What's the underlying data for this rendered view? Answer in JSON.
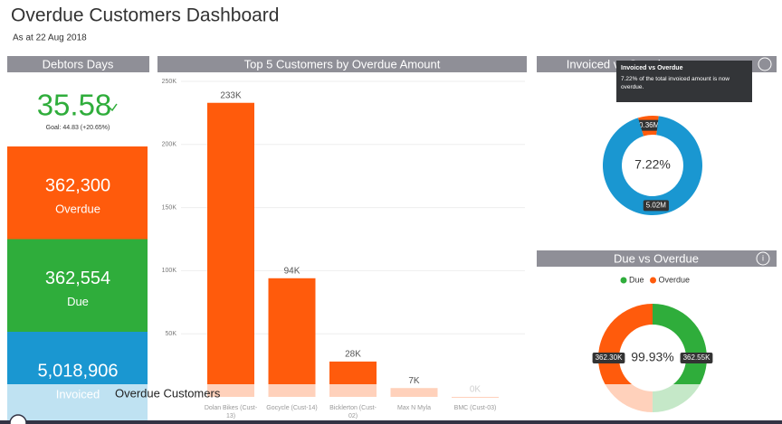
{
  "header": {
    "title": "Overdue Customers Dashboard",
    "subtitle": "As at 22 Aug 2018"
  },
  "debtors_days": {
    "title": "Debtors Days",
    "value": "35.58",
    "goal": "Goal: 44.83 (+20.65%)"
  },
  "cards": [
    {
      "value": "362,300",
      "label": "Overdue",
      "color": "#ff5b0c"
    },
    {
      "value": "362,554",
      "label": "Due",
      "color": "#2fad3b"
    },
    {
      "value": "5,018,906",
      "label": "Invoiced",
      "color": "#1a97d1"
    }
  ],
  "bar_chart": {
    "type": "bar",
    "title": "Top 5 Customers by Overdue Amount",
    "categories": [
      "Dolan Bikes (Cust-13)",
      "Gocycle (Cust-14)",
      "Bicklerton (Cust-02)",
      "Max N Myla",
      "BMC (Cust-03)"
    ],
    "values": [
      233000,
      94000,
      28000,
      7000,
      0
    ],
    "value_labels": [
      "233K",
      "94K",
      "28K",
      "7K",
      "0K"
    ],
    "color": "#ff5b0c",
    "ylim": [
      0,
      250000
    ],
    "yticks": [
      {
        "value": 50000,
        "label": "50K"
      },
      {
        "value": 100000,
        "label": "100K"
      },
      {
        "value": 150000,
        "label": "150K"
      },
      {
        "value": 200000,
        "label": "200K"
      },
      {
        "value": 250000,
        "label": "250K"
      }
    ],
    "grid": true
  },
  "invoiced_vs_overdue": {
    "type": "pie",
    "title": "Invoiced vs Overdue",
    "tooltip": {
      "title": "Invoiced vs Overdue",
      "text": "7.22% of the total invoiced amount is now overdue."
    },
    "values": [
      0.36,
      5.02
    ],
    "value_labels": [
      "0.36M",
      "5.02M"
    ],
    "colors": [
      "#ff5b0c",
      "#1a97d1"
    ],
    "center_label": "7.22%"
  },
  "due_vs_overdue": {
    "type": "pie",
    "title": "Due vs Overdue",
    "categories": [
      "Due",
      "Overdue"
    ],
    "values": [
      362550,
      362300
    ],
    "value_labels": [
      "362.55K",
      "362.30K"
    ],
    "colors": [
      "#2fad3b",
      "#ff5b0c"
    ],
    "center_label": "99.93%"
  },
  "footer": {
    "tab": "Overdue Customers"
  }
}
